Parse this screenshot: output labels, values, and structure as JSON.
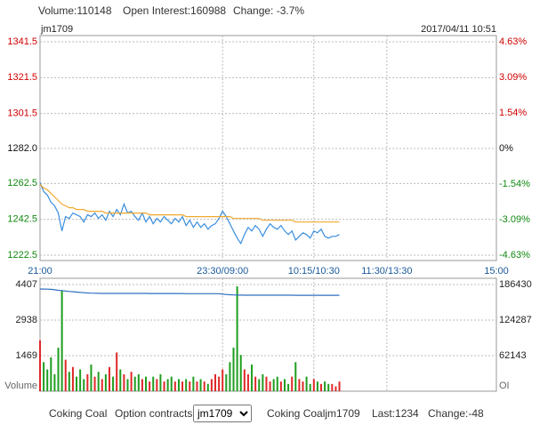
{
  "header": {
    "volume": "Volume:110148",
    "open_interest": "Open Interest:160988",
    "change": "Change: -3.7%"
  },
  "footer": {
    "product": "Coking Coal",
    "option_label": "Option contracts",
    "contract": "jm1709",
    "quote_name": "Coking Coaljm1709",
    "last": "Last:1234",
    "change": "Change:-48"
  },
  "chart_data": [
    {
      "type": "line",
      "title": "jm1709",
      "date": "2017/04/11 10:51",
      "xlim": [
        0,
        375
      ],
      "xticks": [
        {
          "value": 0,
          "label": "21:00"
        },
        {
          "value": 150,
          "label": "23:30/09:00"
        },
        {
          "value": 225,
          "label": "10:15/10:30"
        },
        {
          "value": 285,
          "label": "11:30/13:30"
        },
        {
          "value": 375,
          "label": "15:00"
        }
      ],
      "ylim": [
        1222.5,
        1341.5
      ],
      "yticks": [
        1341.5,
        1321.5,
        1301.5,
        {
          "value": 1282,
          "label": "1282.0"
        },
        1262.5,
        1242.5,
        1222.5
      ],
      "y2lim": [
        -4.63,
        4.63
      ],
      "y2ticks": [
        {
          "value": 4.63,
          "label": "4.63%"
        },
        {
          "value": 3.09,
          "label": "3.09%"
        },
        {
          "value": 1.54,
          "label": "1.54%"
        },
        {
          "value": 0,
          "label": "0%"
        },
        {
          "value": -1.54,
          "label": "-1.54%"
        },
        {
          "value": -3.09,
          "label": "-3.09%"
        },
        {
          "value": -4.63,
          "label": "-4.63%"
        }
      ],
      "grid": true,
      "x": [
        0,
        3,
        6,
        9,
        12,
        15,
        18,
        21,
        24,
        27,
        30,
        33,
        36,
        39,
        42,
        45,
        48,
        51,
        54,
        57,
        60,
        63,
        66,
        69,
        72,
        75,
        78,
        81,
        84,
        87,
        90,
        93,
        96,
        99,
        102,
        105,
        108,
        111,
        114,
        117,
        120,
        123,
        126,
        129,
        132,
        135,
        138,
        141,
        144,
        147,
        150,
        153,
        156,
        159,
        162,
        165,
        168,
        171,
        174,
        177,
        180,
        183,
        186,
        189,
        192,
        195,
        198,
        201,
        204,
        207,
        210,
        213,
        216,
        219,
        222,
        225,
        228,
        231,
        234,
        237,
        240,
        243,
        246
      ],
      "series": [
        {
          "color": "#3a8ede",
          "values": [
            1263,
            1258,
            1256,
            1252,
            1250,
            1246,
            1236,
            1244,
            1243,
            1246,
            1245,
            1244,
            1241,
            1245,
            1244,
            1246,
            1243,
            1245,
            1242,
            1247,
            1244,
            1248,
            1245,
            1251,
            1246,
            1247,
            1244,
            1242,
            1246,
            1241,
            1244,
            1240,
            1243,
            1241,
            1244,
            1242,
            1240,
            1243,
            1241,
            1244,
            1239,
            1242,
            1238,
            1241,
            1238,
            1240,
            1237,
            1239,
            1240,
            1243,
            1247,
            1244,
            1240,
            1236,
            1232,
            1229,
            1234,
            1238,
            1236,
            1239,
            1237,
            1233,
            1237,
            1240,
            1238,
            1237,
            1239,
            1236,
            1234,
            1236,
            1231,
            1233,
            1235,
            1234,
            1232,
            1236,
            1235,
            1237,
            1233,
            1232,
            1233,
            1233,
            1234
          ]
        },
        {
          "color": "#f0a830",
          "values": [
            1262,
            1260,
            1259,
            1257,
            1255,
            1253,
            1251,
            1250,
            1249,
            1249,
            1248,
            1248,
            1248,
            1247,
            1247,
            1247,
            1247,
            1247,
            1246,
            1246,
            1246,
            1246,
            1246,
            1246,
            1246,
            1246,
            1246,
            1246,
            1246,
            1246,
            1245,
            1245,
            1245,
            1245,
            1245,
            1245,
            1245,
            1245,
            1245,
            1245,
            1244,
            1244,
            1244,
            1244,
            1244,
            1244,
            1244,
            1244,
            1244,
            1244,
            1244,
            1244,
            1244,
            1243,
            1243,
            1243,
            1243,
            1243,
            1243,
            1243,
            1243,
            1242,
            1242,
            1242,
            1242,
            1242,
            1242,
            1242,
            1242,
            1242,
            1241,
            1241,
            1241,
            1241,
            1241,
            1241,
            1241,
            1241,
            1241,
            1241,
            1241,
            1241,
            1241
          ]
        }
      ]
    },
    {
      "type": "bar",
      "ylabel": "Volume",
      "y2label": "OI",
      "ylim": [
        0,
        4407
      ],
      "yticks": [
        1469,
        2938,
        4407
      ],
      "y2lim": [
        0,
        186430
      ],
      "y2ticks": [
        62143,
        124287,
        186430
      ],
      "series": [
        {
          "colors": [
            "#e02828",
            "#1e9e1e"
          ],
          "values": [
            2100,
            1200,
            900,
            1400,
            700,
            1800,
            4150,
            1300,
            800,
            1000,
            600,
            900,
            500,
            700,
            1100,
            600,
            800,
            500,
            700,
            1000,
            600,
            1600,
            900,
            700,
            500,
            800,
            600,
            700,
            500,
            600,
            400,
            600,
            500,
            700,
            400,
            500,
            600,
            400,
            500,
            400,
            500,
            400,
            600,
            400,
            500,
            400,
            300,
            500,
            700,
            600,
            900,
            700,
            1200,
            1800,
            4330,
            1500,
            900,
            700,
            1100,
            600,
            500,
            700,
            600,
            400,
            500,
            600,
            400,
            500,
            300,
            600,
            1200,
            500,
            400,
            600,
            300,
            500,
            400,
            300,
            400,
            300,
            300,
            200,
            400
          ]
        },
        {
          "type": "line",
          "axis": "y2",
          "color": "#2f6fc0",
          "values": [
            178700,
            178500,
            178300,
            178000,
            177200,
            176400,
            175800,
            175000,
            174300,
            173800,
            173200,
            172600,
            172100,
            171700,
            171400,
            171200,
            171000,
            170900,
            170900,
            170900,
            170900,
            170900,
            170900,
            170900,
            170900,
            170900,
            170900,
            170900,
            170900,
            170900,
            170800,
            170800,
            170800,
            170800,
            170800,
            170800,
            170800,
            170800,
            170800,
            170800,
            170500,
            170500,
            170500,
            170500,
            170500,
            170500,
            170500,
            170500,
            170500,
            170500,
            169500,
            169000,
            168500,
            168200,
            168000,
            167900,
            167800,
            167800,
            167800,
            167800,
            167800,
            167800,
            167800,
            167800,
            167800,
            167800,
            167800,
            167800,
            167800,
            167800,
            167700,
            167700,
            167700,
            167700,
            167700,
            167700,
            167700,
            167700,
            167700,
            167700,
            167700,
            167700,
            167700
          ]
        }
      ]
    }
  ]
}
